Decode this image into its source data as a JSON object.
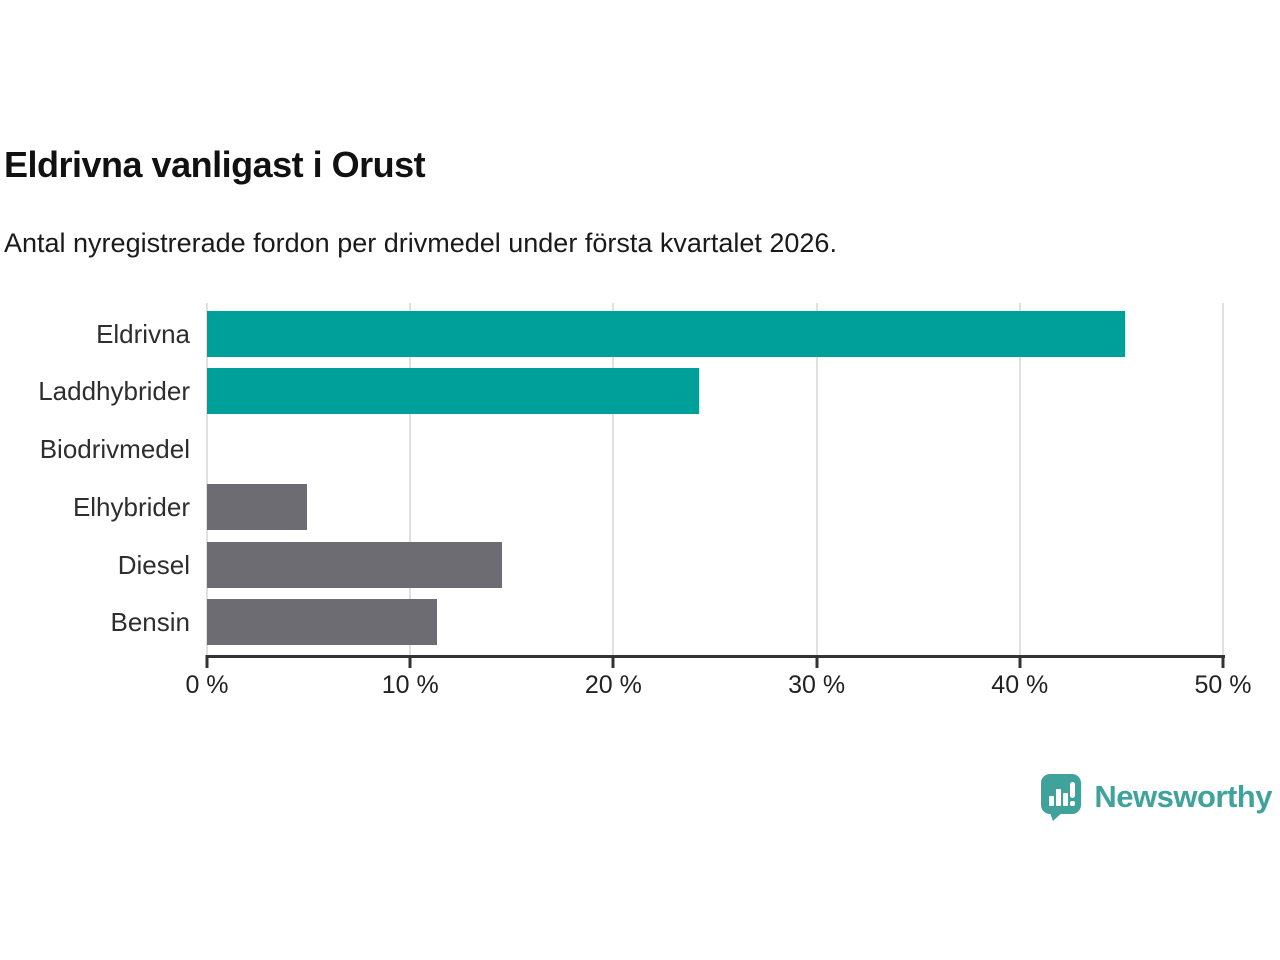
{
  "header": {
    "title": "Eldrivna vanligast i Orust",
    "subtitle": "Antal nyregistrerade fordon per drivmedel under första kvartalet 2026."
  },
  "chart_data": {
    "type": "bar",
    "orientation": "horizontal",
    "title": "Eldrivna vanligast i Orust",
    "subtitle": "Antal nyregistrerade fordon per drivmedel under första kvartalet 2026.",
    "categories": [
      "Eldrivna",
      "Laddhybrider",
      "Biodrivmedel",
      "Elhybrider",
      "Diesel",
      "Bensin"
    ],
    "values": [
      45.2,
      24.2,
      0,
      4.9,
      14.5,
      11.3
    ],
    "unit": "%",
    "xlim": [
      0,
      50
    ],
    "x_tick_values": [
      0,
      10,
      20,
      30,
      40,
      50
    ],
    "x_ticks": [
      "0 %",
      "10 %",
      "20 %",
      "30 %",
      "40 %",
      "50 %"
    ],
    "grid": "vertical-gridlines-on",
    "legend": "none",
    "bar_colors": [
      "#00a09a",
      "#00a09a",
      "#6d6c72",
      "#6d6c72",
      "#6d6c72",
      "#6d6c72"
    ],
    "highlight_color": "#00a09a",
    "default_color": "#6d6c72",
    "gridline_color": "#e0e0e0",
    "axis_color": "#333333"
  },
  "branding": {
    "logo_text": "Newsworthy",
    "logo_color": "#3fa29b",
    "logo_icon": "newsworthy-speech-bubble-bar-chart-exclamation-icon"
  }
}
